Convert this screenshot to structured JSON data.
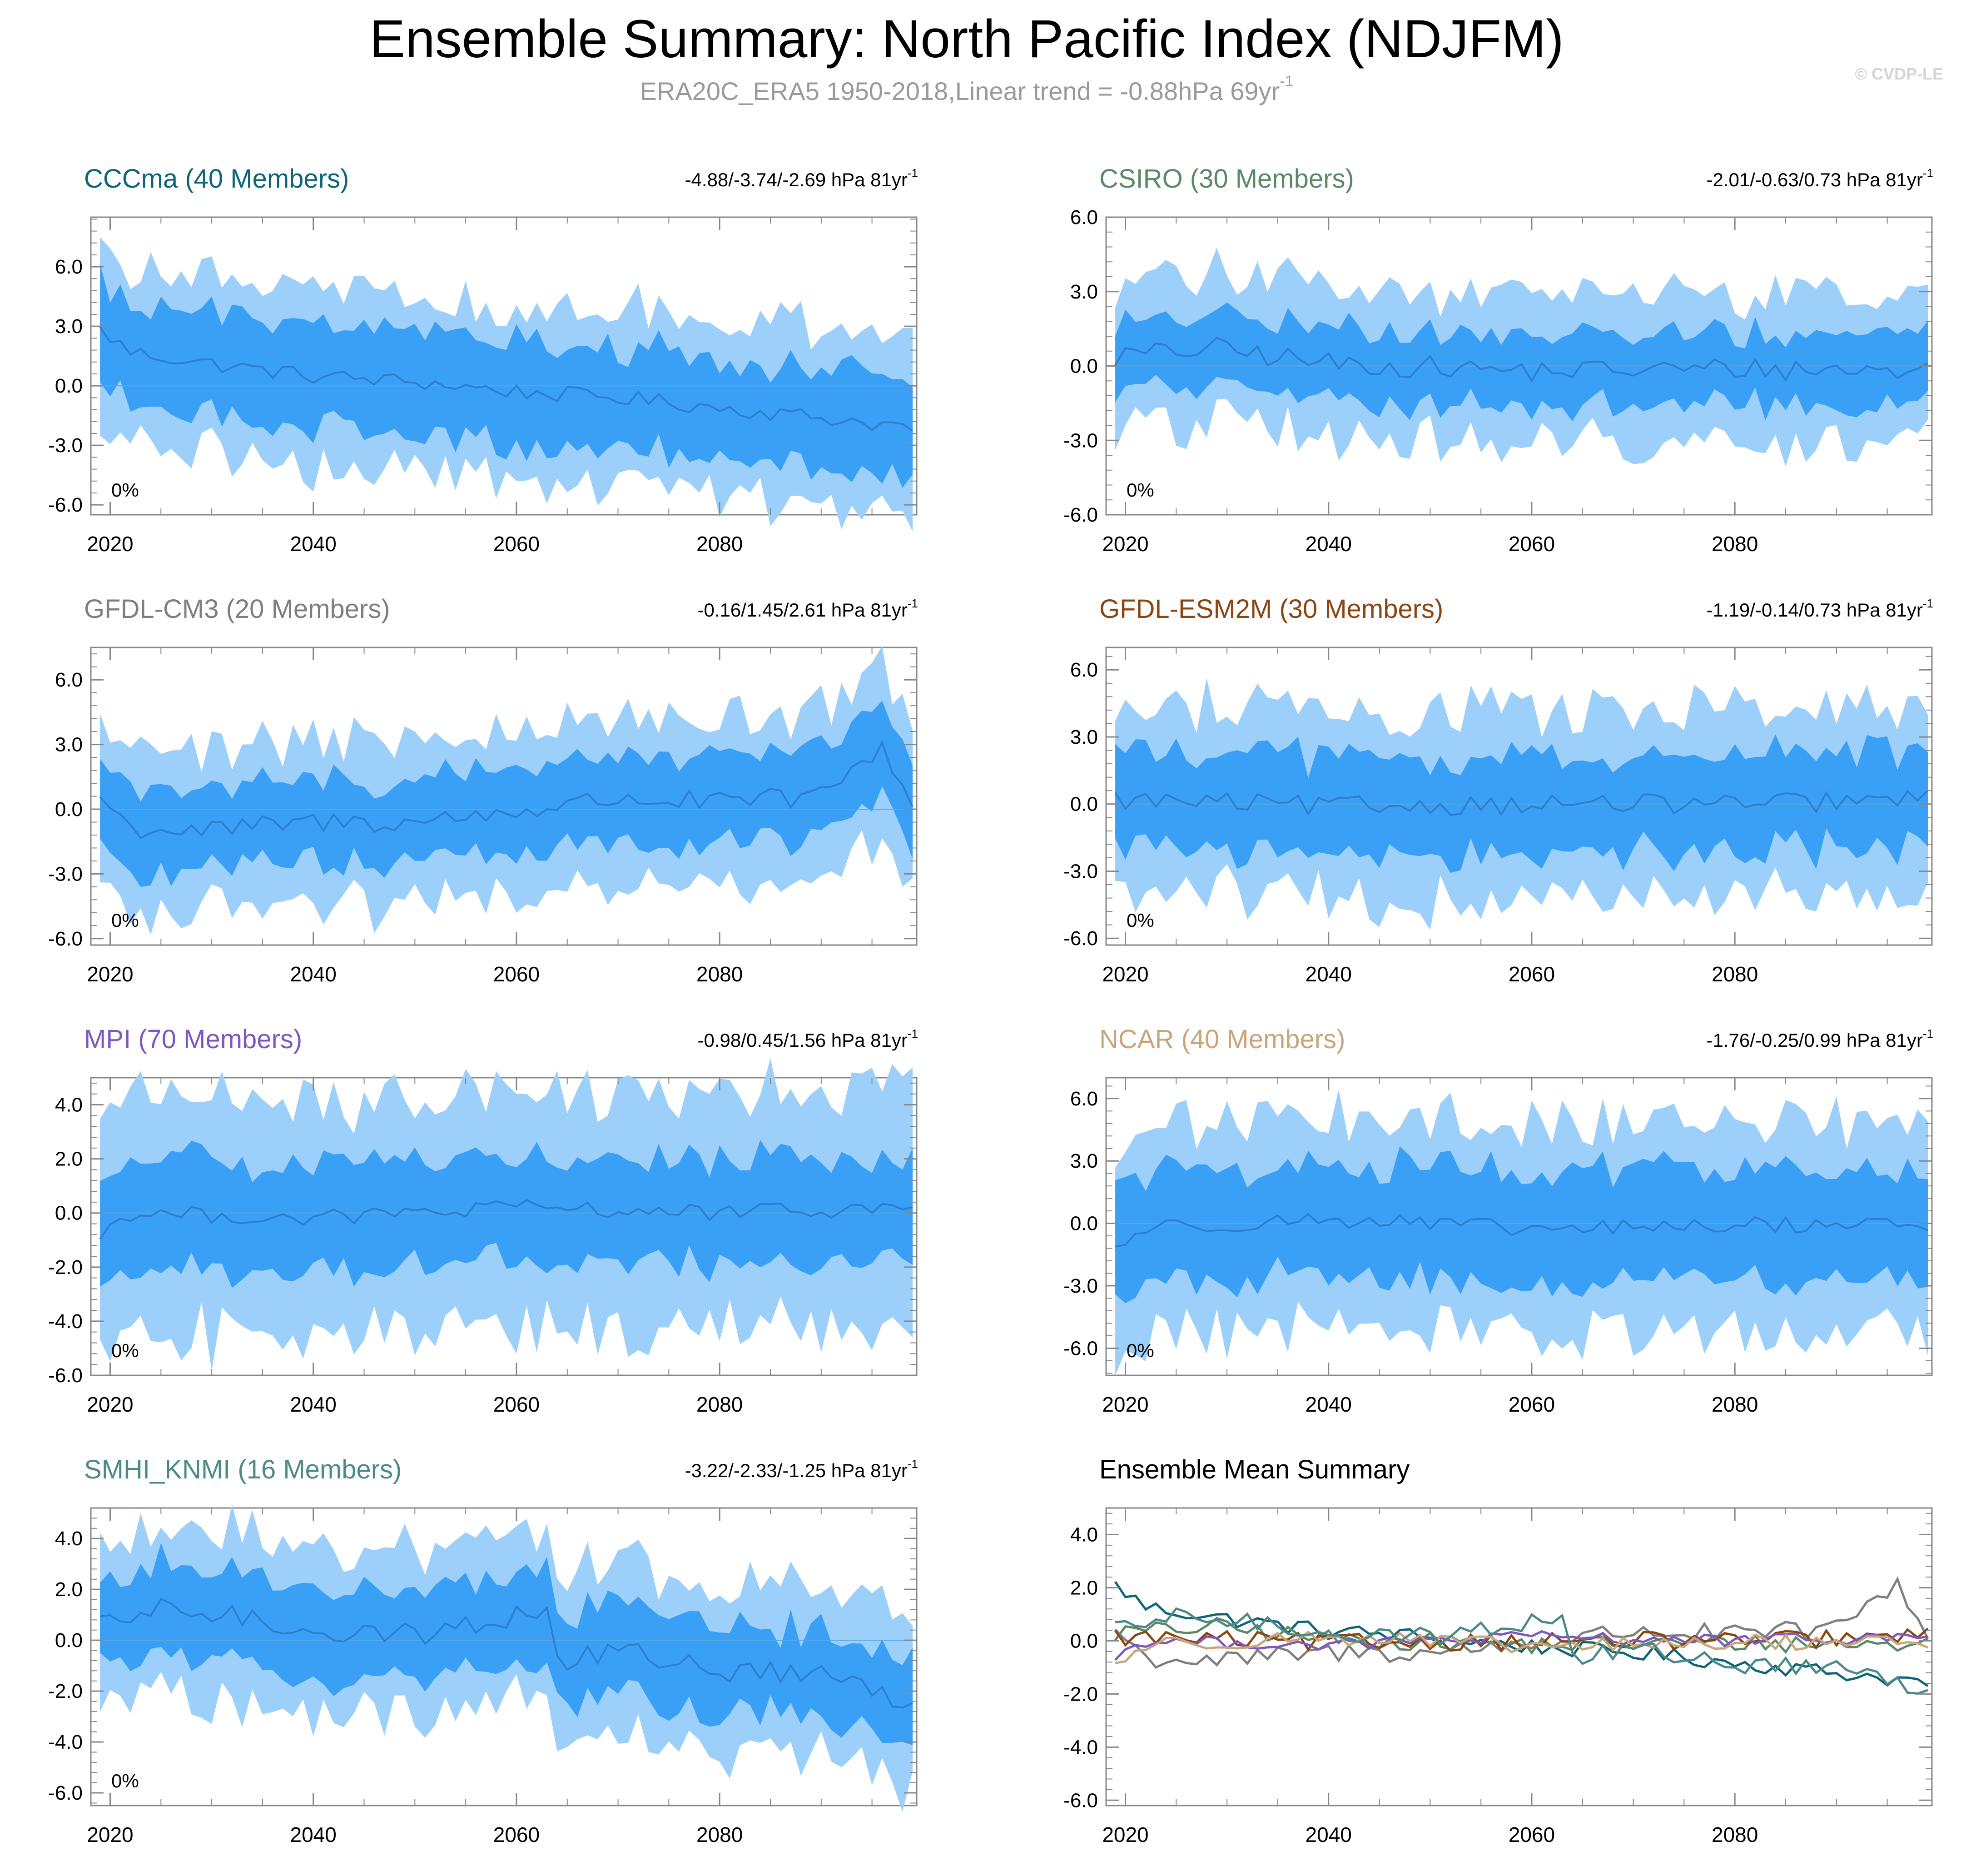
{
  "figure": {
    "title": "Ensemble Summary: North Pacific Index (NDJFM)",
    "subtitle": "ERA20C_ERA5 1950-2018,Linear trend = -0.88hPa 69yr",
    "subtitle_exponent": "-1",
    "watermark": "© CVDP-LE"
  },
  "colors": {
    "outer_band": "#9dcffb",
    "inner_band": "#3aa0f6",
    "mean_line": "#2c7fd0",
    "axis": "#888888"
  },
  "chart_data": [
    {
      "type": "area",
      "title": "CCCma (40 Members)",
      "title_color": "#0d6577",
      "trend_text": "-4.88/-3.74/-2.69 hPa 81yr",
      "trend_exponent": "-1",
      "percent_label": "0%",
      "x_start": 2019,
      "x_end": 2099,
      "xticks": [
        "2020",
        "2040",
        "2060",
        "2080"
      ],
      "ylim": [
        -6.5,
        8.5
      ],
      "yticks": [
        "6.0",
        "3.0",
        "0.0",
        "-3.0",
        "-6.0"
      ],
      "mean_keys": [
        [
          2019,
          2.8
        ],
        [
          2022,
          1.7
        ],
        [
          2030,
          1.1
        ],
        [
          2040,
          0.5
        ],
        [
          2050,
          0.2
        ],
        [
          2060,
          -0.3
        ],
        [
          2070,
          -0.6
        ],
        [
          2080,
          -1.1
        ],
        [
          2090,
          -1.6
        ],
        [
          2099,
          -2.1
        ]
      ],
      "spread_inner": 2.5,
      "spread_outer": 4.4,
      "variability": 0.8
    },
    {
      "type": "area",
      "title": "CSIRO (30 Members)",
      "title_color": "#5a8a64",
      "trend_text": "-2.01/-0.63/0.73 hPa 81yr",
      "trend_exponent": "-1",
      "percent_label": "0%",
      "x_start": 2019,
      "x_end": 2099,
      "xticks": [
        "2020",
        "2040",
        "2060",
        "2080"
      ],
      "ylim": [
        -6.0,
        6.0
      ],
      "yticks": [
        "6.0",
        "3.0",
        "0.0",
        "-3.0",
        "-6.0"
      ],
      "mean_keys": [
        [
          2019,
          0.4
        ],
        [
          2029,
          0.7
        ],
        [
          2040,
          0.1
        ],
        [
          2060,
          -0.2
        ],
        [
          2080,
          -0.1
        ],
        [
          2099,
          -0.2
        ]
      ],
      "spread_inner": 1.4,
      "spread_outer": 3.0,
      "variability": 0.9
    },
    {
      "type": "area",
      "title": "GFDL-CM3 (20 Members)",
      "title_color": "#7f7f7f",
      "trend_text": "-0.16/1.45/2.61 hPa 81yr",
      "trend_exponent": "-1",
      "percent_label": "0%",
      "x_start": 2019,
      "x_end": 2099,
      "xticks": [
        "2020",
        "2040",
        "2060",
        "2080"
      ],
      "ylim": [
        -6.3,
        7.5
      ],
      "yticks": [
        "6.0",
        "3.0",
        "0.0",
        "-3.0",
        "-6.0"
      ],
      "mean_keys": [
        [
          2019,
          0.6
        ],
        [
          2022,
          -0.9
        ],
        [
          2030,
          -1.0
        ],
        [
          2040,
          -0.6
        ],
        [
          2050,
          -0.6
        ],
        [
          2060,
          -0.1
        ],
        [
          2070,
          0.5
        ],
        [
          2080,
          0.3
        ],
        [
          2090,
          0.6
        ],
        [
          2096,
          2.9
        ],
        [
          2099,
          0.2
        ]
      ],
      "spread_inner": 1.9,
      "spread_outer": 3.8,
      "variability": 1.0
    },
    {
      "type": "area",
      "title": "GFDL-ESM2M (30 Members)",
      "title_color": "#8b4513",
      "trend_text": "-1.19/-0.14/0.73 hPa 81yr",
      "trend_exponent": "-1",
      "percent_label": "0%",
      "x_start": 2019,
      "x_end": 2099,
      "xticks": [
        "2020",
        "2040",
        "2060",
        "2080"
      ],
      "ylim": [
        -6.3,
        7.0
      ],
      "yticks": [
        "6.0",
        "3.0",
        "0.0",
        "-3.0",
        "-6.0"
      ],
      "mean_keys": [
        [
          2019,
          0.2
        ],
        [
          2040,
          -0.1
        ],
        [
          2060,
          0.0
        ],
        [
          2080,
          0.0
        ],
        [
          2099,
          0.2
        ]
      ],
      "spread_inner": 2.1,
      "spread_outer": 4.2,
      "variability": 0.9
    },
    {
      "type": "area",
      "title": "MPI (70 Members)",
      "title_color": "#7e57c2",
      "trend_text": "-0.98/0.45/1.56 hPa 81yr",
      "trend_exponent": "-1",
      "percent_label": "0%",
      "x_start": 2019,
      "x_end": 2099,
      "xticks": [
        "2020",
        "2040",
        "2060",
        "2080"
      ],
      "ylim": [
        -6.0,
        5.0
      ],
      "yticks": [
        "4.0",
        "2.0",
        "0.0",
        "-2.0",
        "-4.0",
        "-6.0"
      ],
      "mean_keys": [
        [
          2019,
          -0.8
        ],
        [
          2022,
          0.0
        ],
        [
          2040,
          -0.2
        ],
        [
          2060,
          0.2
        ],
        [
          2080,
          0.0
        ],
        [
          2099,
          0.2
        ]
      ],
      "spread_inner": 1.9,
      "spread_outer": 4.4,
      "variability": 0.6
    },
    {
      "type": "area",
      "title": "NCAR (40 Members)",
      "title_color": "#c9a57a",
      "trend_text": "-1.76/-0.25/0.99 hPa 81yr",
      "trend_exponent": "-1",
      "percent_label": "0%",
      "x_start": 2019,
      "x_end": 2099,
      "xticks": [
        "2020",
        "2040",
        "2060",
        "2080"
      ],
      "ylim": [
        -7.3,
        7.0
      ],
      "yticks": [
        "6.0",
        "3.0",
        "0.0",
        "-3.0",
        "-6.0"
      ],
      "mean_keys": [
        [
          2019,
          -1.2
        ],
        [
          2022,
          -0.2
        ],
        [
          2040,
          0.2
        ],
        [
          2060,
          -0.3
        ],
        [
          2080,
          -0.1
        ],
        [
          2099,
          0.0
        ]
      ],
      "spread_inner": 2.6,
      "spread_outer": 5.0,
      "variability": 0.8
    },
    {
      "type": "area",
      "title": "SMHI_KNMI (16 Members)",
      "title_color": "#4c8a8a",
      "trend_text": "-3.22/-2.33/-1.25 hPa 81yr",
      "trend_exponent": "-1",
      "percent_label": "0%",
      "x_start": 2019,
      "x_end": 2099,
      "xticks": [
        "2020",
        "2040",
        "2060",
        "2080"
      ],
      "ylim": [
        -6.5,
        5.2
      ],
      "yticks": [
        "4.0",
        "2.0",
        "0.0",
        "-2.0",
        "-4.0",
        "-6.0"
      ],
      "mean_keys": [
        [
          2019,
          0.5
        ],
        [
          2026,
          1.3
        ],
        [
          2040,
          0.4
        ],
        [
          2050,
          0.2
        ],
        [
          2063,
          1.2
        ],
        [
          2064,
          -0.9
        ],
        [
          2070,
          -0.4
        ],
        [
          2080,
          -1.2
        ],
        [
          2090,
          -1.3
        ],
        [
          2099,
          -2.6
        ]
      ],
      "spread_inner": 1.7,
      "spread_outer": 3.3,
      "variability": 0.9
    },
    {
      "type": "line",
      "title": "Ensemble Mean Summary",
      "title_color": "#000000",
      "x_start": 2019,
      "x_end": 2099,
      "xticks": [
        "2020",
        "2040",
        "2060",
        "2080"
      ],
      "ylim": [
        -6.2,
        5.0
      ],
      "yticks": [
        "4.0",
        "2.0",
        "0.0",
        "-2.0",
        "-4.0",
        "-6.0"
      ],
      "series_from_panels": true
    }
  ]
}
